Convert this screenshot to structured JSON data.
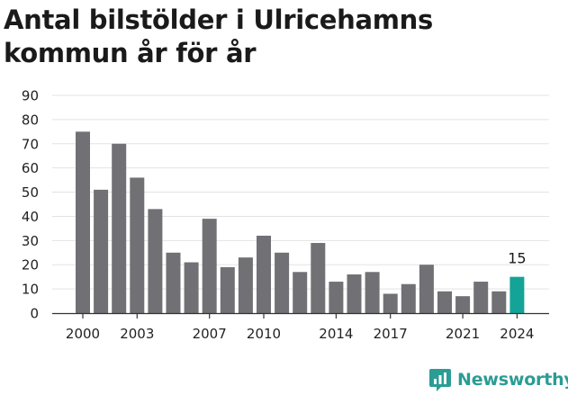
{
  "page": {
    "title": "Antal bilstölder i Ulricehamns kommun år för år",
    "brand": "Newsworthy",
    "colors": {
      "bar": "#717075",
      "highlight": "#14a397",
      "grid": "#e3e3e3",
      "brand": "#2a9d94"
    }
  },
  "chart_data": {
    "type": "bar",
    "title": "Antal bilstölder i Ulricehamns kommun år för år",
    "xlabel": "",
    "ylabel": "",
    "ylim": [
      0,
      90
    ],
    "yticks": [
      0,
      10,
      20,
      30,
      40,
      50,
      60,
      70,
      80,
      90
    ],
    "grid": true,
    "legend": "none",
    "categories": [
      2000,
      2001,
      2002,
      2003,
      2004,
      2005,
      2006,
      2007,
      2008,
      2009,
      2010,
      2011,
      2012,
      2013,
      2014,
      2015,
      2016,
      2017,
      2018,
      2019,
      2020,
      2021,
      2022,
      2023,
      2024
    ],
    "values": [
      75,
      51,
      70,
      56,
      43,
      25,
      21,
      39,
      19,
      23,
      32,
      25,
      17,
      29,
      13,
      16,
      17,
      8,
      12,
      20,
      9,
      7,
      13,
      9,
      15
    ],
    "xtick_labels": [
      2000,
      2003,
      2007,
      2010,
      2014,
      2017,
      2021,
      2024
    ],
    "highlight": {
      "category": 2024,
      "value": 15,
      "label": "15"
    }
  }
}
